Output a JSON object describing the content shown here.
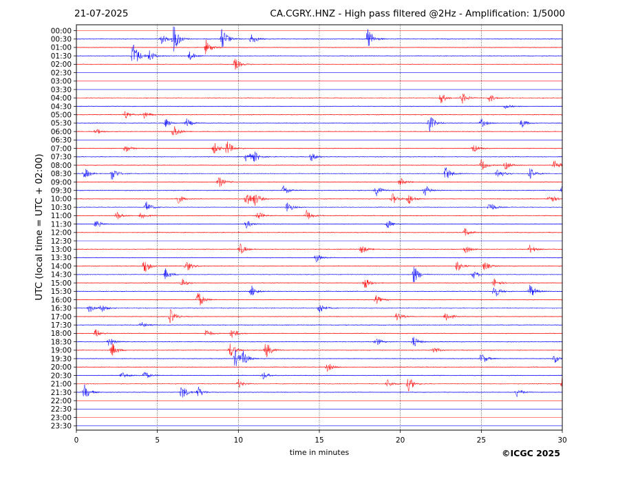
{
  "header": {
    "date": "21-07-2025",
    "title": "CA.CGRY..HNZ - High pass filtered @2Hz - Amplification: 1/5000"
  },
  "footer": {
    "copyright": "©ICGC 2025"
  },
  "chart_data": {
    "type": "line",
    "title": "CA.CGRY..HNZ - High pass filtered @2Hz - Amplification: 1/5000",
    "xlabel": "time in minutes",
    "ylabel": "UTC (local time = UTC + 02:00)",
    "xlim": [
      0,
      30
    ],
    "x_ticks": [
      0,
      5,
      10,
      15,
      20,
      25,
      30
    ],
    "rows": [
      "00:00",
      "00:30",
      "01:00",
      "01:30",
      "02:00",
      "02:30",
      "03:00",
      "03:30",
      "04:00",
      "04:30",
      "05:00",
      "05:30",
      "06:00",
      "06:30",
      "07:00",
      "07:30",
      "08:00",
      "08:30",
      "09:00",
      "09:30",
      "10:00",
      "10:30",
      "11:00",
      "11:30",
      "12:00",
      "12:30",
      "13:00",
      "13:30",
      "14:00",
      "14:30",
      "15:00",
      "15:30",
      "16:00",
      "16:30",
      "17:00",
      "17:30",
      "18:00",
      "18:30",
      "19:00",
      "19:30",
      "20:00",
      "20:30",
      "21:00",
      "21:30",
      "22:00",
      "22:30",
      "23:00",
      "23:30"
    ],
    "trace_colors": [
      "#ff0000",
      "#0000ff"
    ],
    "grid": "vertical dotted lines at x ticks",
    "events": [
      [
        1,
        6.0,
        1.0
      ],
      [
        1,
        9.0,
        0.8
      ],
      [
        1,
        18.0,
        0.8
      ],
      [
        1,
        5.2,
        0.4
      ],
      [
        1,
        10.8,
        0.4
      ],
      [
        2,
        8.0,
        0.5
      ],
      [
        3,
        3.5,
        1.0
      ],
      [
        3,
        4.5,
        0.4
      ],
      [
        3,
        7.0,
        0.3
      ],
      [
        4,
        9.8,
        0.4
      ],
      [
        8,
        22.5,
        0.4
      ],
      [
        8,
        23.8,
        0.4
      ],
      [
        8,
        25.5,
        0.3
      ],
      [
        9,
        26.5,
        0.2
      ],
      [
        10,
        3.0,
        0.3
      ],
      [
        10,
        4.2,
        0.3
      ],
      [
        11,
        5.5,
        0.3
      ],
      [
        11,
        6.8,
        0.3
      ],
      [
        11,
        21.8,
        0.6
      ],
      [
        11,
        25.0,
        0.3
      ],
      [
        11,
        27.5,
        0.3
      ],
      [
        12,
        1.2,
        0.2
      ],
      [
        12,
        6.0,
        0.5
      ],
      [
        14,
        3.0,
        0.3
      ],
      [
        14,
        8.5,
        0.4
      ],
      [
        14,
        9.3,
        0.5
      ],
      [
        14,
        24.5,
        0.3
      ],
      [
        15,
        10.5,
        0.4
      ],
      [
        15,
        11.0,
        0.3
      ],
      [
        15,
        14.5,
        0.3
      ],
      [
        16,
        25.0,
        0.4
      ],
      [
        16,
        26.5,
        0.3
      ],
      [
        16,
        29.5,
        0.4
      ],
      [
        17,
        0.5,
        0.4
      ],
      [
        17,
        2.2,
        0.5
      ],
      [
        17,
        22.8,
        0.5
      ],
      [
        17,
        26.0,
        0.4
      ],
      [
        17,
        28.0,
        0.4
      ],
      [
        18,
        8.8,
        0.4
      ],
      [
        18,
        20.0,
        0.3
      ],
      [
        19,
        12.8,
        0.4
      ],
      [
        19,
        18.5,
        0.4
      ],
      [
        19,
        21.5,
        0.4
      ],
      [
        19,
        30.0,
        0.4
      ],
      [
        20,
        6.2,
        0.4
      ],
      [
        20,
        10.5,
        0.6
      ],
      [
        20,
        11.0,
        0.4
      ],
      [
        20,
        19.5,
        0.4
      ],
      [
        20,
        20.5,
        0.4
      ],
      [
        20,
        29.2,
        0.4
      ],
      [
        21,
        4.3,
        0.4
      ],
      [
        21,
        13.0,
        0.4
      ],
      [
        21,
        25.5,
        0.4
      ],
      [
        22,
        2.5,
        0.3
      ],
      [
        22,
        4.0,
        0.3
      ],
      [
        22,
        14.2,
        0.4
      ],
      [
        22,
        11.2,
        0.3
      ],
      [
        23,
        1.2,
        0.3
      ],
      [
        23,
        10.5,
        0.3
      ],
      [
        23,
        19.2,
        0.3
      ],
      [
        24,
        24.0,
        0.3
      ],
      [
        26,
        10.1,
        0.4
      ],
      [
        26,
        17.6,
        0.3
      ],
      [
        26,
        24.0,
        0.3
      ],
      [
        26,
        28.0,
        0.3
      ],
      [
        27,
        14.8,
        0.3
      ],
      [
        28,
        4.2,
        0.5
      ],
      [
        28,
        6.8,
        0.4
      ],
      [
        28,
        23.5,
        0.4
      ],
      [
        28,
        25.2,
        0.3
      ],
      [
        29,
        5.5,
        0.4
      ],
      [
        29,
        20.8,
        0.7
      ],
      [
        29,
        24.5,
        0.3
      ],
      [
        30,
        6.5,
        0.3
      ],
      [
        30,
        17.8,
        0.4
      ],
      [
        30,
        25.8,
        0.3
      ],
      [
        31,
        10.8,
        0.4
      ],
      [
        31,
        25.8,
        0.5
      ],
      [
        31,
        28.0,
        0.5
      ],
      [
        32,
        7.5,
        0.6
      ],
      [
        32,
        18.5,
        0.3
      ],
      [
        33,
        0.8,
        0.3
      ],
      [
        33,
        1.5,
        0.3
      ],
      [
        33,
        15.0,
        0.4
      ],
      [
        34,
        5.8,
        0.5
      ],
      [
        34,
        19.8,
        0.3
      ],
      [
        34,
        22.8,
        0.4
      ],
      [
        35,
        4.0,
        0.2
      ],
      [
        36,
        1.2,
        0.3
      ],
      [
        36,
        8.0,
        0.3
      ],
      [
        36,
        9.6,
        0.4
      ],
      [
        37,
        2.0,
        0.3
      ],
      [
        37,
        18.5,
        0.3
      ],
      [
        37,
        20.8,
        0.4
      ],
      [
        38,
        2.2,
        0.5
      ],
      [
        38,
        9.5,
        0.5
      ],
      [
        38,
        11.7,
        0.6
      ],
      [
        38,
        22.0,
        0.3
      ],
      [
        39,
        9.8,
        0.6
      ],
      [
        39,
        10.3,
        0.4
      ],
      [
        39,
        25.0,
        0.4
      ],
      [
        39,
        29.5,
        0.3
      ],
      [
        40,
        15.5,
        0.3
      ],
      [
        41,
        2.8,
        0.3
      ],
      [
        41,
        4.2,
        0.3
      ],
      [
        41,
        11.5,
        0.3
      ],
      [
        42,
        10.0,
        0.3
      ],
      [
        42,
        19.2,
        0.3
      ],
      [
        42,
        20.5,
        0.5
      ],
      [
        42,
        30.0,
        0.5
      ],
      [
        43,
        0.5,
        0.5
      ],
      [
        43,
        6.5,
        0.5
      ],
      [
        43,
        7.5,
        0.4
      ],
      [
        43,
        27.2,
        0.3
      ]
    ]
  }
}
